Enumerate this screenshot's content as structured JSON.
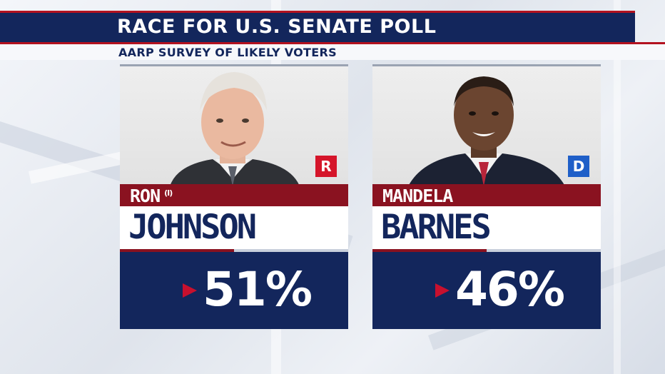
{
  "header": {
    "title": "RACE FOR U.S. SENATE POLL",
    "subtitle": "AARP SURVEY OF LIKELY VOTERS"
  },
  "candidates": [
    {
      "first_name": "RON",
      "incumbent_marker": "(I)",
      "last_name": "JOHNSON",
      "party": "R",
      "party_color": "#d5152a",
      "percent": "51%"
    },
    {
      "first_name": "MANDELA",
      "last_name": "BARNES",
      "party": "D",
      "party_color": "#1f5fc8",
      "percent": "46%"
    }
  ],
  "colors": {
    "navy": "#13265c",
    "red": "#b3121f",
    "dark_red": "#8a1220"
  }
}
